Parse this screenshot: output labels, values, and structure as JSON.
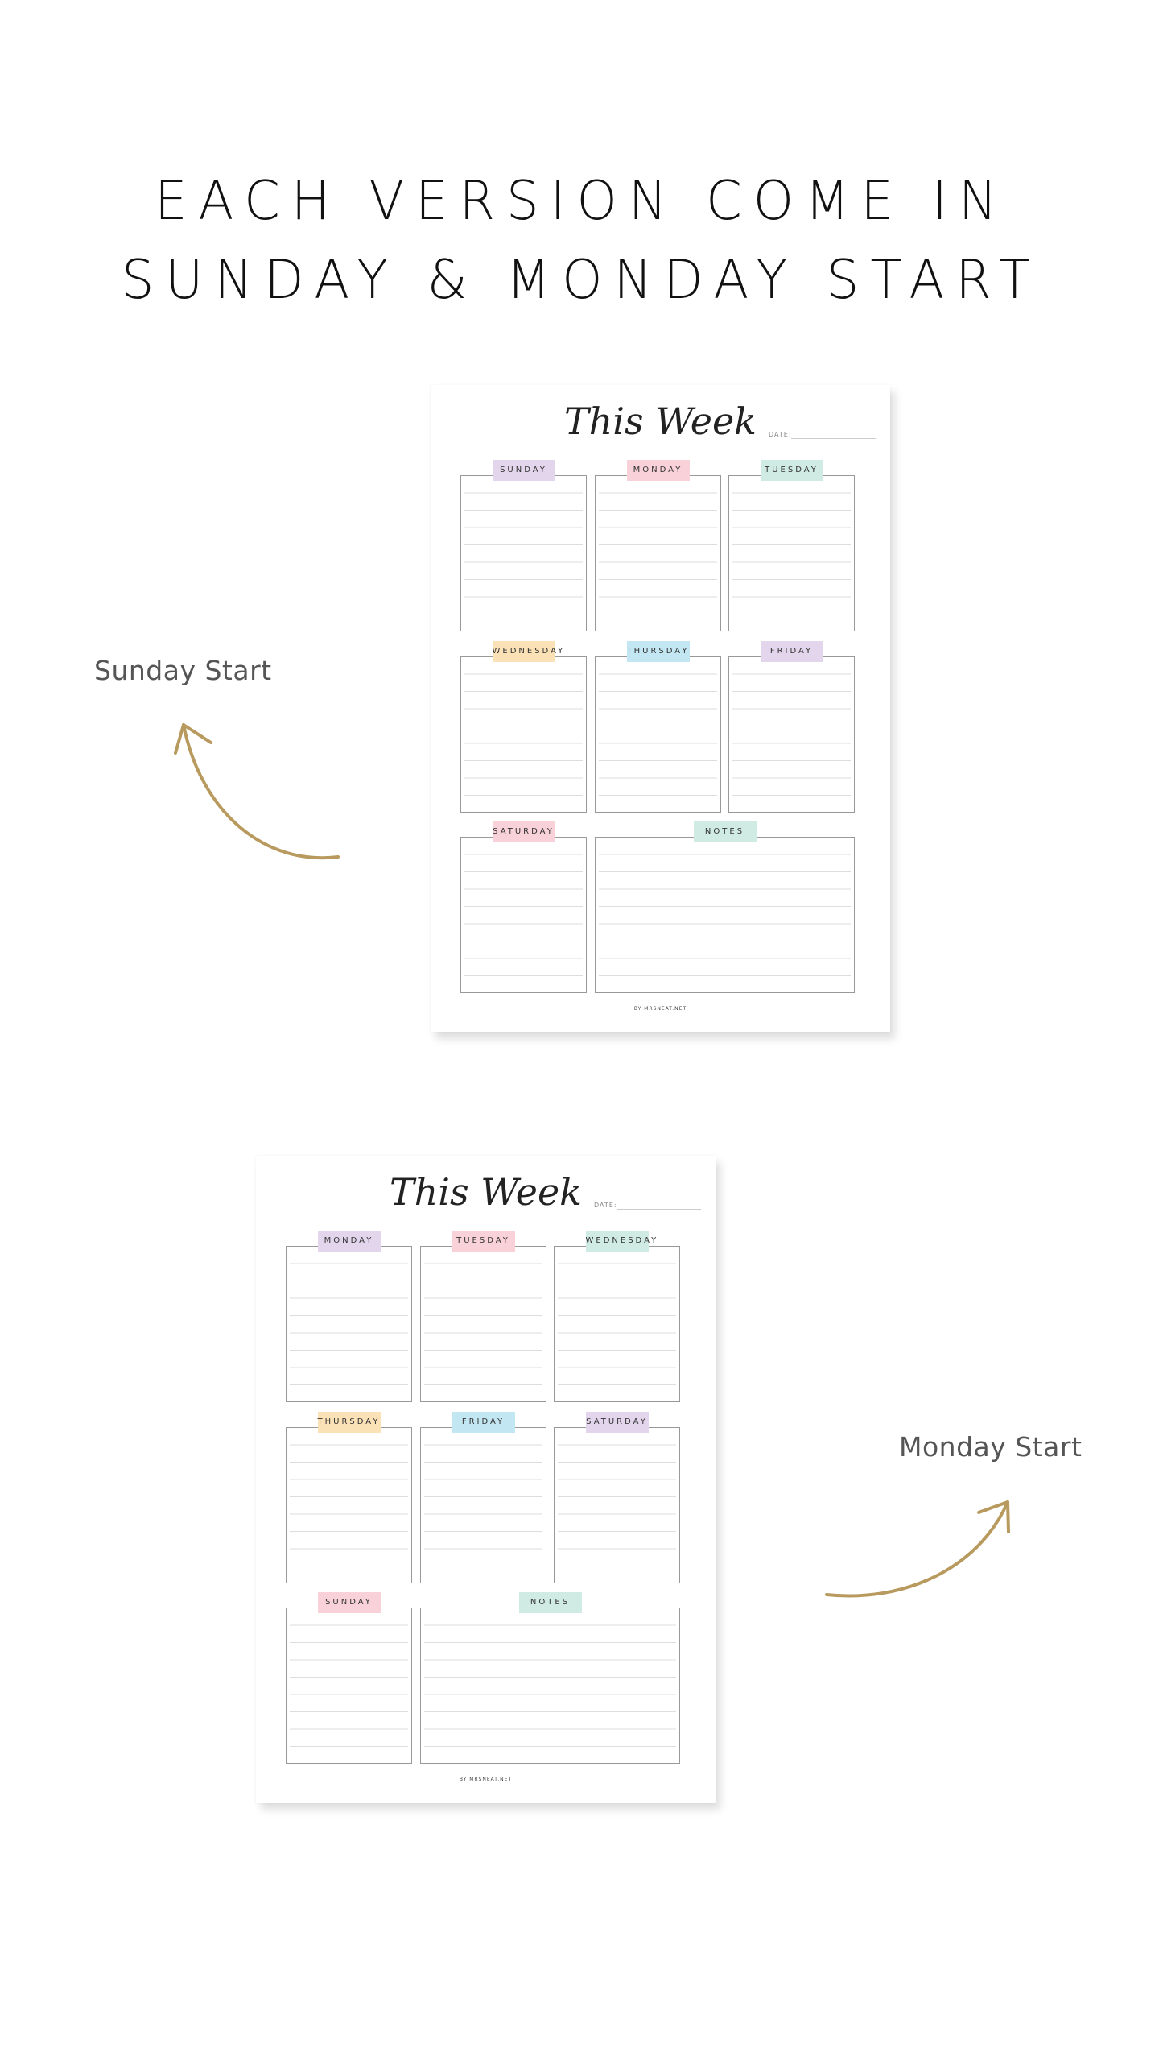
{
  "headline": {
    "line1": "EACH VERSION COME IN",
    "line2": "SUNDAY & MONDAY START"
  },
  "labels": {
    "sunday_start": "Sunday Start",
    "monday_start": "Monday Start"
  },
  "colors": {
    "arrow_gold": "#b89a5e",
    "purple": "#e3d6ec",
    "pink": "#f8d1d9",
    "mint": "#d0ebe3",
    "orange": "#fbe1b6",
    "blue": "#c2e7f3"
  },
  "planners": [
    {
      "title": "This Week",
      "date_label": "DATE:",
      "footer": "BY  MRSNEAT.NET",
      "tabs": [
        {
          "label": "SUNDAY",
          "color": "purple"
        },
        {
          "label": "MONDAY",
          "color": "pink"
        },
        {
          "label": "TUESDAY",
          "color": "mint"
        },
        {
          "label": "WEDNESDAY",
          "color": "orange"
        },
        {
          "label": "THURSDAY",
          "color": "blue"
        },
        {
          "label": "FRIDAY",
          "color": "purple"
        },
        {
          "label": "SATURDAY",
          "color": "pink"
        },
        {
          "label": "NOTES",
          "color": "mint"
        }
      ]
    },
    {
      "title": "This Week",
      "date_label": "DATE:",
      "footer": "BY  MRSNEAT.NET",
      "tabs": [
        {
          "label": "MONDAY",
          "color": "purple"
        },
        {
          "label": "TUESDAY",
          "color": "pink"
        },
        {
          "label": "WEDNESDAY",
          "color": "mint"
        },
        {
          "label": "THURSDAY",
          "color": "orange"
        },
        {
          "label": "FRIDAY",
          "color": "blue"
        },
        {
          "label": "SATURDAY",
          "color": "purple"
        },
        {
          "label": "SUNDAY",
          "color": "pink"
        },
        {
          "label": "NOTES",
          "color": "mint"
        }
      ]
    }
  ]
}
